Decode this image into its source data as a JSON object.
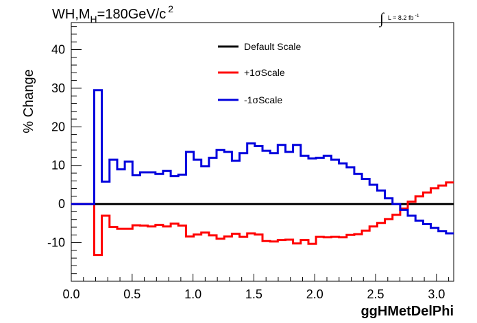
{
  "chart_data": {
    "type": "line",
    "title": "WH,M",
    "title_subscript": "H",
    "title_rest": "=180GeV/c",
    "title_superscript": "2",
    "lumi_label": "L = 8.2 fb",
    "lumi_superscript": "-1",
    "lumi_integral": "∫",
    "xlabel": "ggHMetDelPhi",
    "ylabel": "% Change",
    "xlim": [
      0,
      3.1416
    ],
    "ylim": [
      -20,
      47
    ],
    "x_ticks": [
      "0.0",
      "0.5",
      "1.0",
      "1.5",
      "2.0",
      "2.5",
      "3.0"
    ],
    "y_ticks": [
      "-10",
      "0",
      "10",
      "20",
      "30",
      "40"
    ],
    "legend_placement": "top-center",
    "bin_edges": [
      0,
      0.0628,
      0.1257,
      0.1885,
      0.2513,
      0.3142,
      0.377,
      0.4398,
      0.5027,
      0.5655,
      0.6283,
      0.6912,
      0.754,
      0.8168,
      0.8796,
      0.9425,
      1.0053,
      1.0681,
      1.131,
      1.1938,
      1.2566,
      1.3195,
      1.3823,
      1.4451,
      1.508,
      1.5708,
      1.6336,
      1.6965,
      1.7593,
      1.8221,
      1.885,
      1.9478,
      2.0106,
      2.0735,
      2.1363,
      2.1991,
      2.2619,
      2.3248,
      2.3876,
      2.4504,
      2.5133,
      2.5761,
      2.6389,
      2.7018,
      2.7646,
      2.8274,
      2.8903,
      2.9531,
      3.0159,
      3.0788,
      3.1416
    ],
    "series": [
      {
        "name": "Default Scale",
        "color": "#000000",
        "values": [
          0,
          0,
          0,
          0,
          0,
          0,
          0,
          0,
          0,
          0,
          0,
          0,
          0,
          0,
          0,
          0,
          0,
          0,
          0,
          0,
          0,
          0,
          0,
          0,
          0,
          0,
          0,
          0,
          0,
          0,
          0,
          0,
          0,
          0,
          0,
          0,
          0,
          0,
          0,
          0,
          0,
          0,
          0,
          0,
          0,
          0,
          0,
          0,
          0,
          0
        ]
      },
      {
        "name": "+1σScale",
        "color": "#ff0000",
        "values": [
          0,
          0,
          0,
          -13.2,
          -3.0,
          -5.9,
          -6.4,
          -6.4,
          -5.5,
          -5.6,
          -5.8,
          -5.4,
          -5.8,
          -5.1,
          -5.6,
          -8.4,
          -7.9,
          -7.4,
          -8.1,
          -9.0,
          -8.4,
          -7.7,
          -8.5,
          -7.6,
          -7.9,
          -9.6,
          -9.7,
          -9.3,
          -9.2,
          -10.2,
          -9.3,
          -10.3,
          -8.5,
          -8.6,
          -8.5,
          -8.6,
          -8.0,
          -7.8,
          -6.9,
          -5.8,
          -4.9,
          -3.9,
          -2.8,
          -1.2,
          0.6,
          2.0,
          3.0,
          4.1,
          4.8,
          5.6
        ]
      },
      {
        "name": "-1σScale",
        "color": "#0000dd",
        "values": [
          0,
          0,
          0,
          29.5,
          5.8,
          11.5,
          9.0,
          11.0,
          7.5,
          8.2,
          8.2,
          7.8,
          8.6,
          7.2,
          7.6,
          13.5,
          11.5,
          9.8,
          12.0,
          14.0,
          13.5,
          11.2,
          13.2,
          15.7,
          15.0,
          13.8,
          13.2,
          15.3,
          13.5,
          15.3,
          12.5,
          11.8,
          12.0,
          12.5,
          11.5,
          10.5,
          9.5,
          7.8,
          6.5,
          5.0,
          3.5,
          1.5,
          0.0,
          -1.5,
          -3.0,
          -4.3,
          -5.2,
          -6.2,
          -7.0,
          -7.6
        ]
      }
    ]
  }
}
